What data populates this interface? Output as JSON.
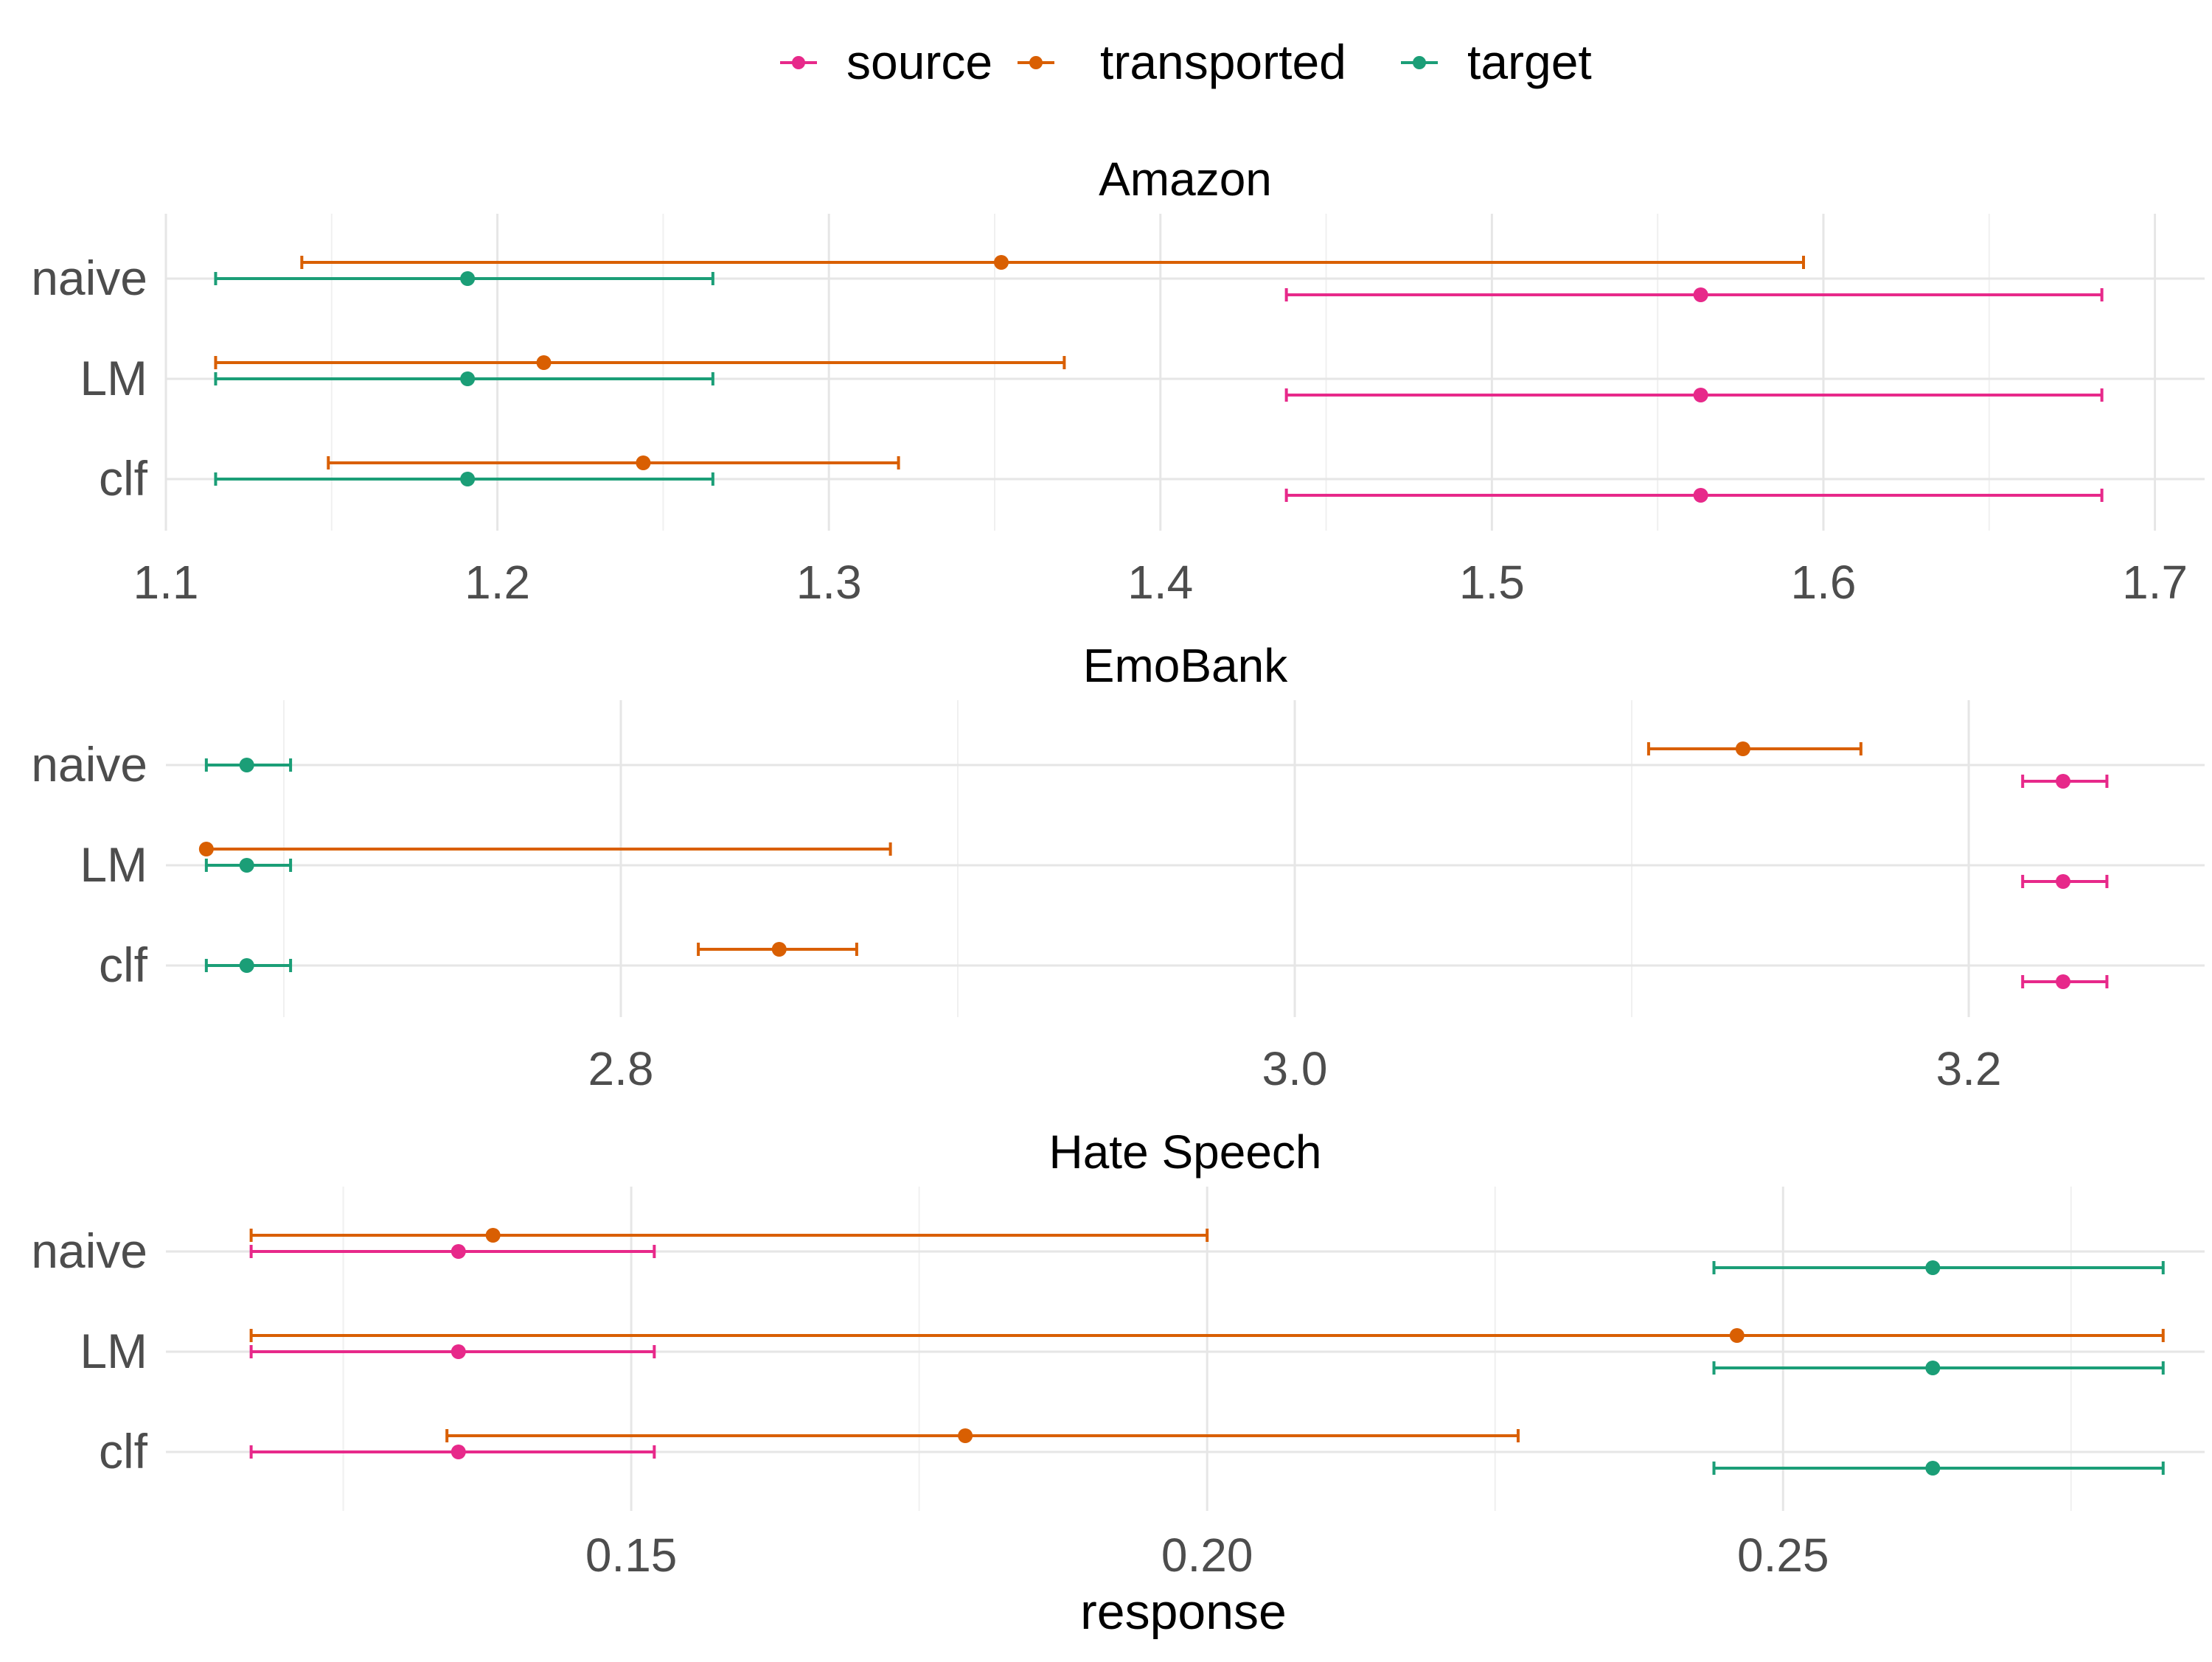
{
  "chart_data": {
    "type": "errorbar",
    "legend": {
      "placement": "top",
      "entries": [
        {
          "name": "source",
          "color": "#E7298A"
        },
        {
          "name": "transported",
          "color": "#D95F02"
        },
        {
          "name": "target",
          "color": "#1B9E77"
        }
      ]
    },
    "xlabel": "response",
    "categories": [
      "naive",
      "LM",
      "clf"
    ],
    "panels": [
      {
        "title": "Amazon",
        "xlim": [
          1.1,
          1.715
        ],
        "major_ticks": [
          1.1,
          1.2,
          1.3,
          1.4,
          1.5,
          1.6,
          1.7
        ],
        "tick_labels": [
          "1.1",
          "1.2",
          "1.3",
          "1.4",
          "1.5",
          "1.6",
          "1.7"
        ],
        "minor_ticks": [
          1.15,
          1.25,
          1.35,
          1.45,
          1.55,
          1.65
        ],
        "points": [
          {
            "category": "naive",
            "series": "transported",
            "value": 1.352,
            "low": 1.141,
            "high": 1.594
          },
          {
            "category": "naive",
            "series": "target",
            "value": 1.191,
            "low": 1.115,
            "high": 1.265
          },
          {
            "category": "naive",
            "series": "source",
            "value": 1.563,
            "low": 1.438,
            "high": 1.684
          },
          {
            "category": "LM",
            "series": "transported",
            "value": 1.214,
            "low": 1.115,
            "high": 1.371
          },
          {
            "category": "LM",
            "series": "target",
            "value": 1.191,
            "low": 1.115,
            "high": 1.265
          },
          {
            "category": "LM",
            "series": "source",
            "value": 1.563,
            "low": 1.438,
            "high": 1.684
          },
          {
            "category": "clf",
            "series": "transported",
            "value": 1.244,
            "low": 1.149,
            "high": 1.321
          },
          {
            "category": "clf",
            "series": "target",
            "value": 1.191,
            "low": 1.115,
            "high": 1.265
          },
          {
            "category": "clf",
            "series": "source",
            "value": 1.563,
            "low": 1.438,
            "high": 1.684
          }
        ]
      },
      {
        "title": "EmoBank",
        "xlim": [
          2.665,
          3.27
        ],
        "major_ticks": [
          2.8,
          3.0,
          3.2
        ],
        "tick_labels": [
          "2.8",
          "3.0",
          "3.2"
        ],
        "minor_ticks": [
          2.7,
          2.9,
          3.1
        ],
        "points": [
          {
            "category": "naive",
            "series": "transported",
            "value": 3.133,
            "low": 3.105,
            "high": 3.168
          },
          {
            "category": "naive",
            "series": "target",
            "value": 2.689,
            "low": 2.677,
            "high": 2.702
          },
          {
            "category": "naive",
            "series": "source",
            "value": 3.228,
            "low": 3.216,
            "high": 3.241
          },
          {
            "category": "LM",
            "series": "transported",
            "value": 2.677,
            "low": 2.677,
            "high": 2.88
          },
          {
            "category": "LM",
            "series": "target",
            "value": 2.689,
            "low": 2.677,
            "high": 2.702
          },
          {
            "category": "LM",
            "series": "source",
            "value": 3.228,
            "low": 3.216,
            "high": 3.241
          },
          {
            "category": "clf",
            "series": "transported",
            "value": 2.847,
            "low": 2.823,
            "high": 2.87
          },
          {
            "category": "clf",
            "series": "target",
            "value": 2.689,
            "low": 2.677,
            "high": 2.702
          },
          {
            "category": "clf",
            "series": "source",
            "value": 3.228,
            "low": 3.216,
            "high": 3.241
          }
        ]
      },
      {
        "title": "Hate Speech",
        "xlim": [
          0.1096,
          0.2866
        ],
        "major_ticks": [
          0.15,
          0.2,
          0.25
        ],
        "tick_labels": [
          "0.15",
          "0.20",
          "0.25"
        ],
        "minor_ticks": [
          0.125,
          0.175,
          0.225,
          0.275
        ],
        "points": [
          {
            "category": "naive",
            "series": "transported",
            "value": 0.138,
            "low": 0.117,
            "high": 0.2
          },
          {
            "category": "naive",
            "series": "source",
            "value": 0.135,
            "low": 0.117,
            "high": 0.152
          },
          {
            "category": "naive",
            "series": "target",
            "value": 0.263,
            "low": 0.244,
            "high": 0.283
          },
          {
            "category": "LM",
            "series": "transported",
            "value": 0.246,
            "low": 0.117,
            "high": 0.283
          },
          {
            "category": "LM",
            "series": "source",
            "value": 0.135,
            "low": 0.117,
            "high": 0.152
          },
          {
            "category": "LM",
            "series": "target",
            "value": 0.263,
            "low": 0.244,
            "high": 0.283
          },
          {
            "category": "clf",
            "series": "transported",
            "value": 0.179,
            "low": 0.134,
            "high": 0.227
          },
          {
            "category": "clf",
            "series": "source",
            "value": 0.135,
            "low": 0.117,
            "high": 0.152
          },
          {
            "category": "clf",
            "series": "target",
            "value": 0.263,
            "low": 0.244,
            "high": 0.283
          }
        ]
      }
    ]
  }
}
